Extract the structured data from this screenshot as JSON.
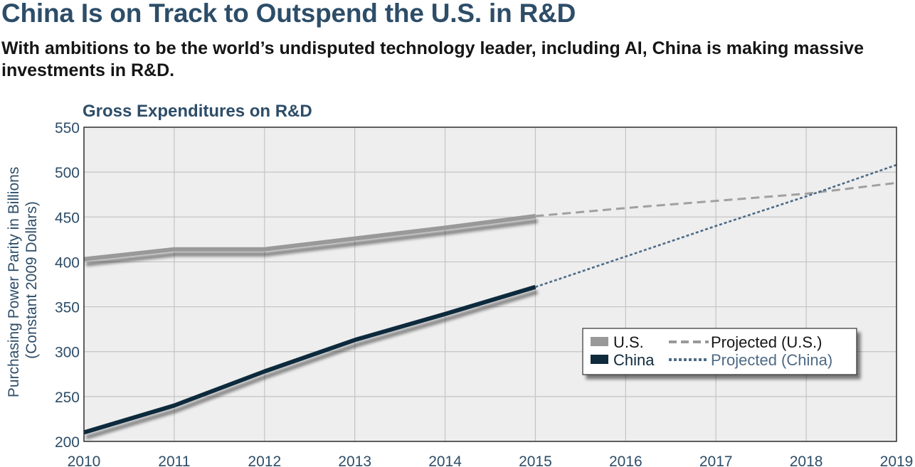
{
  "header": {
    "title": "China Is on Track to Outspend the U.S. in R&D",
    "subtitle": "With ambitions to be the world’s undisputed technology leader, including AI, China is making massive investments in R&D."
  },
  "chart_data": {
    "type": "line",
    "title": "Gross Expenditures on R&D",
    "ylabel": "Purchasing Power Parity in Billions (Constant 2009 Dollars)",
    "ylabel_lines": [
      "Purchasing Power Parity in Billions",
      "(Constant 2009 Dollars)"
    ],
    "xlabel": "",
    "x": [
      2010,
      2011,
      2012,
      2013,
      2014,
      2015,
      2016,
      2017,
      2018,
      2019
    ],
    "x_tick_labels": [
      "2010",
      "2011",
      "2012",
      "2013",
      "2014",
      "2015",
      "2016",
      "2017",
      "2018",
      "2019"
    ],
    "ylim": [
      200,
      550
    ],
    "y_ticks": [
      200,
      250,
      300,
      350,
      400,
      450,
      500,
      550
    ],
    "grid": true,
    "legend_position": "bottom-right",
    "series": [
      {
        "name": "U.S.",
        "color": "#999999",
        "style": "solid",
        "points": [
          [
            2010,
            403
          ],
          [
            2011,
            414
          ],
          [
            2012,
            414
          ],
          [
            2013,
            426
          ],
          [
            2014,
            438
          ],
          [
            2015,
            451
          ]
        ]
      },
      {
        "name": "China",
        "color": "#0f2a3c",
        "style": "solid",
        "points": [
          [
            2010,
            210
          ],
          [
            2011,
            240
          ],
          [
            2012,
            278
          ],
          [
            2013,
            313
          ],
          [
            2014,
            342
          ],
          [
            2015,
            372
          ]
        ]
      },
      {
        "name": "Projected (U.S.)",
        "color": "#a0a0a0",
        "style": "dashed",
        "points": [
          [
            2015,
            451
          ],
          [
            2016,
            460
          ],
          [
            2017,
            468
          ],
          [
            2018,
            476
          ],
          [
            2019,
            488
          ]
        ]
      },
      {
        "name": "Projected (China)",
        "color": "#4d6a85",
        "style": "dotted",
        "points": [
          [
            2015,
            372
          ],
          [
            2016,
            406
          ],
          [
            2017,
            440
          ],
          [
            2018,
            473
          ],
          [
            2019,
            508
          ]
        ]
      }
    ],
    "legend": [
      {
        "label": "U.S.",
        "color": "#999999",
        "style": "solid-block"
      },
      {
        "label": "China",
        "color": "#0f2a3c",
        "style": "solid-block"
      },
      {
        "label": "Projected (U.S.)",
        "color": "#999999",
        "style": "dashed",
        "text_color": "#151515"
      },
      {
        "label": "Projected (China)",
        "color": "#4d6a85",
        "style": "dotted",
        "text_color": "#4d6a85"
      }
    ],
    "colors": {
      "plot_background": "#eeeeee",
      "grid": "#c4c4c4",
      "axis_text": "#2d4d68",
      "border": "#303030"
    }
  }
}
